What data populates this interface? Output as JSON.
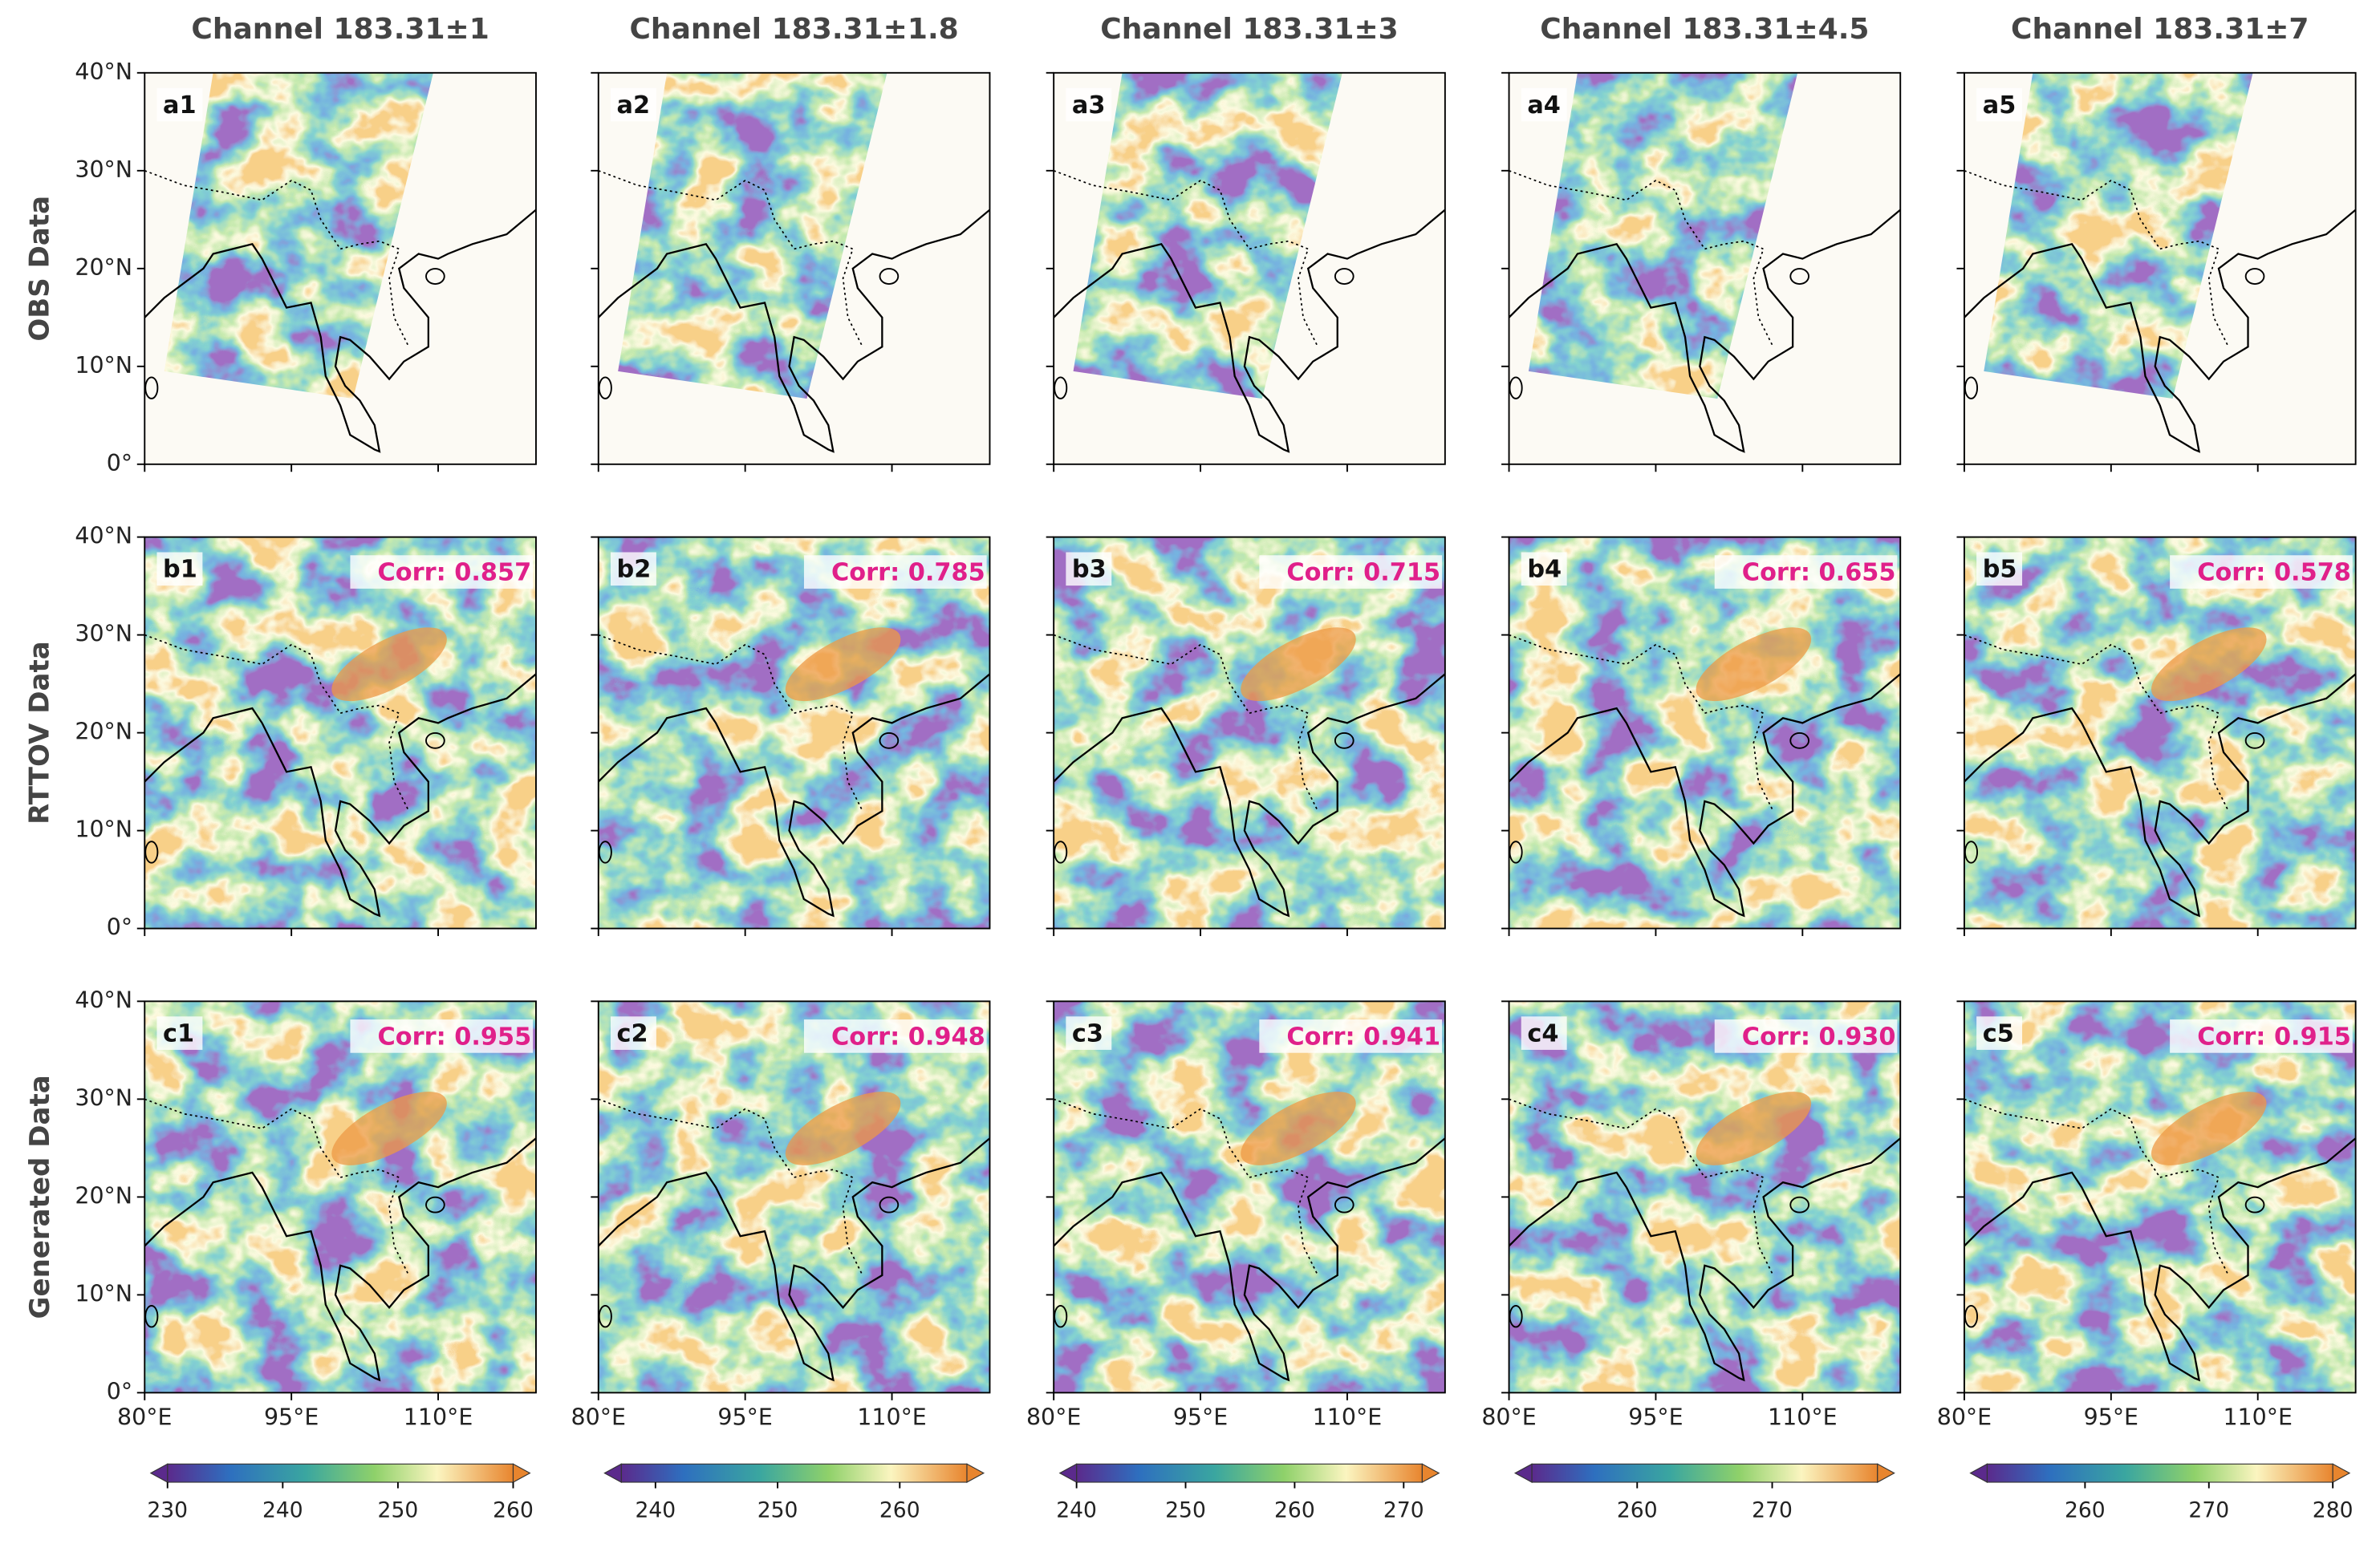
{
  "columns": [
    {
      "title": "Channel 183.31±1",
      "colorbar": {
        "lim": [
          230,
          260
        ],
        "ticks": [
          230,
          240,
          250,
          260
        ]
      }
    },
    {
      "title": "Channel 183.31±1.8",
      "colorbar": {
        "lim": [
          237.2,
          265.5
        ],
        "ticks": [
          240,
          250,
          260
        ]
      }
    },
    {
      "title": "Channel 183.31±3",
      "colorbar": {
        "lim": [
          240,
          271.7
        ],
        "ticks": [
          240,
          250,
          260,
          270
        ]
      }
    },
    {
      "title": "Channel 183.31±4.5",
      "colorbar": {
        "lim": [
          252.2,
          277.8
        ],
        "ticks": [
          260,
          270
        ]
      }
    },
    {
      "title": "Channel 183.31±7",
      "colorbar": {
        "lim": [
          252.1,
          280
        ],
        "ticks": [
          260,
          270,
          280
        ]
      }
    }
  ],
  "rows": [
    {
      "label": "OBS Data",
      "panels": [
        {
          "label": "a1"
        },
        {
          "label": "a2"
        },
        {
          "label": "a3"
        },
        {
          "label": "a4"
        },
        {
          "label": "a5"
        }
      ]
    },
    {
      "label": "RTTOV Data",
      "panels": [
        {
          "label": "b1",
          "corr": "Corr: 0.857"
        },
        {
          "label": "b2",
          "corr": "Corr: 0.785"
        },
        {
          "label": "b3",
          "corr": "Corr: 0.715"
        },
        {
          "label": "b4",
          "corr": "Corr: 0.655"
        },
        {
          "label": "b5",
          "corr": "Corr: 0.578"
        }
      ]
    },
    {
      "label": "Generated Data",
      "panels": [
        {
          "label": "c1",
          "corr": "Corr: 0.955"
        },
        {
          "label": "c2",
          "corr": "Corr: 0.948"
        },
        {
          "label": "c3",
          "corr": "Corr: 0.941"
        },
        {
          "label": "c4",
          "corr": "Corr: 0.930"
        },
        {
          "label": "c5",
          "corr": "Corr: 0.915"
        }
      ]
    }
  ],
  "lat_lim": [
    0,
    40
  ],
  "lat_ticks": [
    {
      "value": 0,
      "label": "0°"
    },
    {
      "value": 10,
      "label": "10°N"
    },
    {
      "value": 20,
      "label": "20°N"
    },
    {
      "value": 30,
      "label": "30°N"
    },
    {
      "value": 40,
      "label": "40°N"
    }
  ],
  "lon_lim": [
    80,
    120
  ],
  "lon_ticks": [
    {
      "value": 80,
      "label": "80°E"
    },
    {
      "value": 95,
      "label": "95°E"
    },
    {
      "value": 110,
      "label": "110°E"
    }
  ]
}
